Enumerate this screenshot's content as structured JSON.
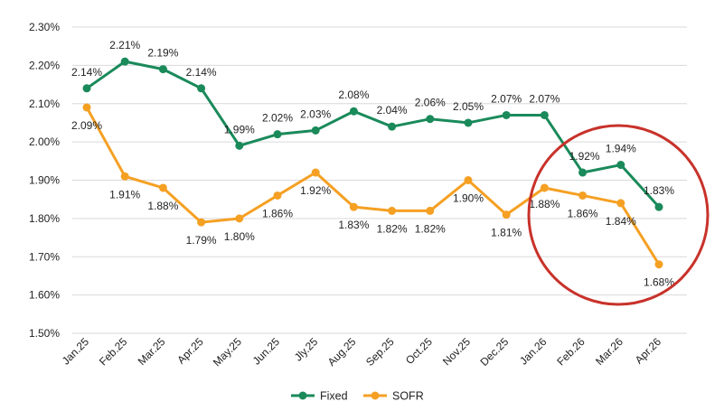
{
  "chart_data": {
    "type": "line",
    "title": "",
    "xlabel": "",
    "ylabel": "",
    "categories": [
      "Jan.25",
      "Feb.25",
      "Mar.25",
      "Apr.25",
      "May.25",
      "Jun.25",
      "Jly.25",
      "Aug.25",
      "Sep.25",
      "Oct.25",
      "Nov.25",
      "Dec.25",
      "Jan.26",
      "Feb.26",
      "Mar.26",
      "Apr.26"
    ],
    "ylim": [
      1.5,
      2.3
    ],
    "yticks": [
      1.5,
      1.6,
      1.7,
      1.8,
      1.9,
      2.0,
      2.1,
      2.2,
      2.3
    ],
    "ytick_labels": [
      "1.50%",
      "1.60%",
      "1.70%",
      "1.80%",
      "1.90%",
      "2.00%",
      "2.10%",
      "2.20%",
      "2.30%"
    ],
    "grid": "horizontal",
    "legend_position": "bottom",
    "series": [
      {
        "name": "Fixed",
        "color": "#1a8a5a",
        "values": [
          2.14,
          2.21,
          2.19,
          2.14,
          1.99,
          2.02,
          2.03,
          2.08,
          2.04,
          2.06,
          2.05,
          2.07,
          2.07,
          1.92,
          1.94,
          1.83
        ],
        "labels": [
          "2.14%",
          "2.21%",
          "2.19%",
          "2.14%",
          "1.99%",
          "2.02%",
          "2.03%",
          "2.08%",
          "2.04%",
          "2.06%",
          "2.05%",
          "2.07%",
          "2.07%",
          "1.92%",
          "1.94%",
          "1.83%"
        ]
      },
      {
        "name": "SOFR",
        "color": "#f5a023",
        "values": [
          2.09,
          1.91,
          1.88,
          1.79,
          1.8,
          1.86,
          1.92,
          1.83,
          1.82,
          1.82,
          1.9,
          1.81,
          1.88,
          1.86,
          1.84,
          1.68
        ],
        "labels": [
          "2.09%",
          "1.91%",
          "1.88%",
          "1.79%",
          "1.80%",
          "1.86%",
          "1.92%",
          "1.83%",
          "1.82%",
          "1.82%",
          "1.90%",
          "1.81%",
          "1.88%",
          "1.86%",
          "1.84%",
          "1.68%"
        ]
      }
    ],
    "annotation": {
      "shape": "circle",
      "color": "#c8322a",
      "highlights": [
        "Feb.26",
        "Mar.26",
        "Apr.26"
      ]
    }
  }
}
